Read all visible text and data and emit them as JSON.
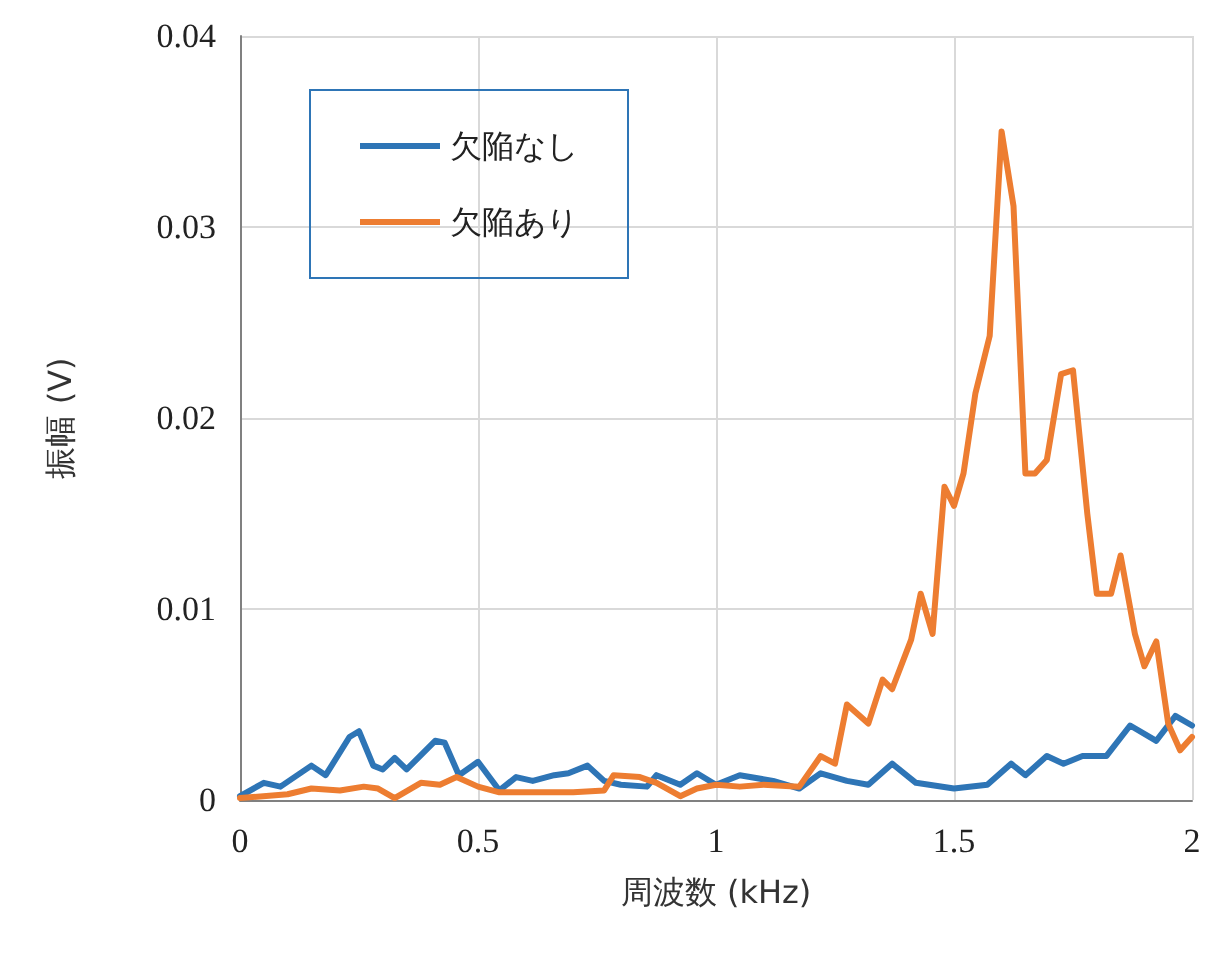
{
  "chart_data": {
    "type": "line",
    "xlabel": "周波数 (kHz)",
    "ylabel": "振幅 (V)",
    "xlim": [
      0,
      2
    ],
    "xticks": [
      0,
      0.5,
      1,
      1.5,
      2
    ],
    "ylim": [
      0,
      0.04
    ],
    "yticks": [
      0,
      0.01,
      0.02,
      0.03,
      0.04
    ],
    "grid": true,
    "legend": "top left",
    "marker": "none",
    "line_style": "solid",
    "series": [
      {
        "name": "欠陥なし",
        "color": "#2e75b6",
        "x": [
          0,
          0.05,
          0.085,
          0.15,
          0.18,
          0.23,
          0.25,
          0.28,
          0.3,
          0.325,
          0.35,
          0.41,
          0.43,
          0.46,
          0.5,
          0.545,
          0.58,
          0.615,
          0.66,
          0.69,
          0.73,
          0.765,
          0.8,
          0.855,
          0.875,
          0.925,
          0.96,
          1.0,
          1.05,
          1.12,
          1.175,
          1.22,
          1.275,
          1.32,
          1.37,
          1.42,
          1.5,
          1.57,
          1.62,
          1.65,
          1.695,
          1.73,
          1.77,
          1.82,
          1.87,
          1.925,
          1.965,
          2.0
        ],
        "values": [
          0.0002,
          0.0009,
          0.0007,
          0.0018,
          0.0013,
          0.0033,
          0.0036,
          0.0018,
          0.0016,
          0.0022,
          0.0016,
          0.0031,
          0.003,
          0.0013,
          0.002,
          0.0005,
          0.0012,
          0.001,
          0.0013,
          0.0014,
          0.0018,
          0.001,
          0.0008,
          0.0007,
          0.0013,
          0.0008,
          0.0014,
          0.0008,
          0.0013,
          0.001,
          0.0006,
          0.0014,
          0.001,
          0.0008,
          0.0019,
          0.0009,
          0.0006,
          0.0008,
          0.0019,
          0.0013,
          0.0023,
          0.0019,
          0.0023,
          0.0023,
          0.0039,
          0.0031,
          0.0044,
          0.0039
        ]
      },
      {
        "name": "欠陥あり",
        "color": "#ed7d31",
        "x": [
          0,
          0.1,
          0.15,
          0.21,
          0.26,
          0.29,
          0.325,
          0.38,
          0.42,
          0.455,
          0.5,
          0.545,
          0.615,
          0.7,
          0.765,
          0.785,
          0.84,
          0.875,
          0.925,
          0.96,
          1.0,
          1.05,
          1.1,
          1.175,
          1.22,
          1.25,
          1.275,
          1.32,
          1.35,
          1.37,
          1.41,
          1.43,
          1.455,
          1.48,
          1.5,
          1.52,
          1.545,
          1.575,
          1.6,
          1.625,
          1.65,
          1.67,
          1.695,
          1.725,
          1.75,
          1.78,
          1.8,
          1.83,
          1.85,
          1.88,
          1.9,
          1.925,
          1.95,
          1.975,
          2.0
        ],
        "values": [
          0.0001,
          0.0003,
          0.0006,
          0.0005,
          0.0007,
          0.0006,
          0.0001,
          0.0009,
          0.0008,
          0.0012,
          0.0007,
          0.0004,
          0.0004,
          0.0004,
          0.0005,
          0.0013,
          0.0012,
          0.0009,
          0.0002,
          0.0006,
          0.0008,
          0.0007,
          0.0008,
          0.0007,
          0.0023,
          0.0019,
          0.005,
          0.004,
          0.0063,
          0.0058,
          0.0084,
          0.0108,
          0.0087,
          0.0164,
          0.0154,
          0.0171,
          0.0213,
          0.0243,
          0.035,
          0.0311,
          0.0171,
          0.0171,
          0.0178,
          0.0223,
          0.0225,
          0.015,
          0.0108,
          0.0108,
          0.0128,
          0.0087,
          0.007,
          0.0083,
          0.004,
          0.0026,
          0.0033
        ]
      }
    ]
  }
}
